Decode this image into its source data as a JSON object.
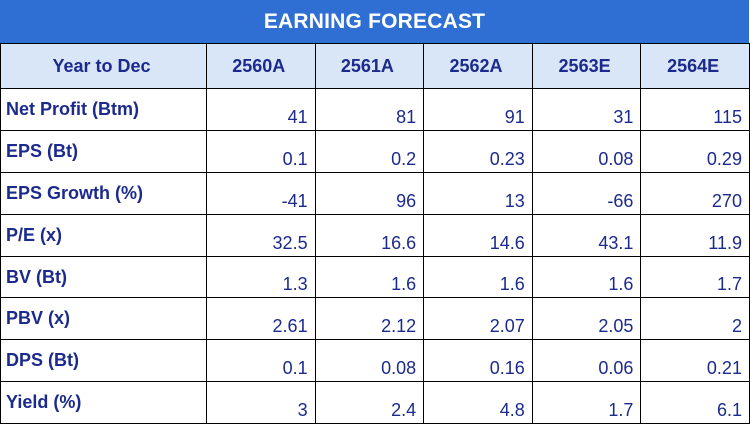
{
  "title": "EARNING FORECAST",
  "header": {
    "row_label": "Year to Dec",
    "years": [
      "2560A",
      "2561A",
      "2562A",
      "2563E",
      "2564E"
    ]
  },
  "rows": [
    {
      "label": "Net Profit (Btm)",
      "values": [
        "41",
        "81",
        "91",
        "31",
        "115"
      ]
    },
    {
      "label": "EPS (Bt)",
      "values": [
        "0.1",
        "0.2",
        "0.23",
        "0.08",
        "0.29"
      ]
    },
    {
      "label": "EPS Growth (%)",
      "values": [
        "-41",
        "96",
        "13",
        "-66",
        "270"
      ]
    },
    {
      "label": "P/E (x)",
      "values": [
        "32.5",
        "16.6",
        "14.6",
        "43.1",
        "11.9"
      ]
    },
    {
      "label": "BV (Bt)",
      "values": [
        "1.3",
        "1.6",
        "1.6",
        "1.6",
        "1.7"
      ]
    },
    {
      "label": "PBV (x)",
      "values": [
        "2.61",
        "2.12",
        "2.07",
        "2.05",
        "2"
      ]
    },
    {
      "label": "DPS (Bt)",
      "values": [
        "0.1",
        "0.08",
        "0.16",
        "0.06",
        "0.21"
      ]
    },
    {
      "label": "Yield (%)",
      "values": [
        "3",
        "2.4",
        "4.8",
        "1.7",
        "6.1"
      ]
    }
  ],
  "colors": {
    "title_bg": "#2f6fd3",
    "header_bg": "#d8e6f7",
    "text": "#1b2a8c"
  }
}
